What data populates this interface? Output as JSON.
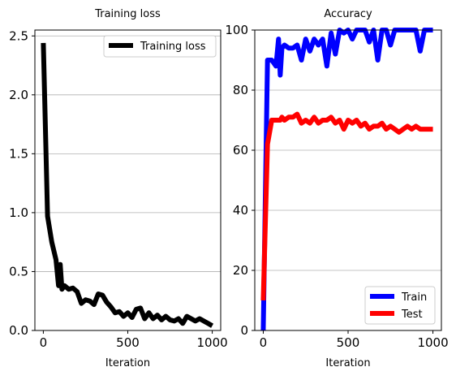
{
  "chart_data": [
    {
      "type": "line",
      "title": "Training loss",
      "xlabel": "Iteration",
      "ylabel": "",
      "xlim": [
        -50,
        1050
      ],
      "ylim": [
        0,
        2.55
      ],
      "xticks": [
        0,
        500,
        1000
      ],
      "xtick_labels": [
        "0",
        "500",
        "1000"
      ],
      "yticks": [
        0,
        0.5,
        1,
        1.5,
        2,
        2.5
      ],
      "ytick_labels": [
        "0.0",
        "0.5",
        "1.0",
        "1.5",
        "2.0",
        "2.5"
      ],
      "grid": "horizontal",
      "legend": "top-right",
      "series": [
        {
          "name": "Training loss",
          "color": "#000000",
          "x": [
            0,
            25,
            50,
            75,
            90,
            100,
            110,
            125,
            150,
            175,
            200,
            225,
            250,
            275,
            300,
            325,
            350,
            375,
            400,
            425,
            450,
            475,
            500,
            525,
            550,
            575,
            600,
            625,
            650,
            675,
            700,
            725,
            750,
            775,
            800,
            825,
            850,
            875,
            900,
            925,
            950,
            975,
            1000
          ],
          "y": [
            2.44,
            0.97,
            0.75,
            0.6,
            0.38,
            0.56,
            0.35,
            0.38,
            0.35,
            0.36,
            0.33,
            0.23,
            0.26,
            0.25,
            0.22,
            0.31,
            0.3,
            0.24,
            0.2,
            0.15,
            0.16,
            0.12,
            0.15,
            0.11,
            0.18,
            0.19,
            0.1,
            0.15,
            0.1,
            0.13,
            0.09,
            0.12,
            0.09,
            0.08,
            0.1,
            0.06,
            0.12,
            0.1,
            0.08,
            0.1,
            0.08,
            0.06,
            0.04
          ]
        }
      ]
    },
    {
      "type": "line",
      "title": "Accuracy",
      "xlabel": "Iteration",
      "ylabel": "",
      "xlim": [
        -50,
        1050
      ],
      "ylim": [
        0,
        100
      ],
      "xticks": [
        0,
        500,
        1000
      ],
      "xtick_labels": [
        "0",
        "500",
        "1000"
      ],
      "yticks": [
        0,
        20,
        40,
        60,
        80,
        100
      ],
      "ytick_labels": [
        "0",
        "20",
        "40",
        "60",
        "80",
        "100"
      ],
      "grid": "horizontal",
      "legend": "bottom-right",
      "series": [
        {
          "name": "Train",
          "color": "#0000ff",
          "x": [
            0,
            25,
            50,
            75,
            90,
            100,
            110,
            125,
            150,
            175,
            200,
            225,
            250,
            275,
            300,
            325,
            350,
            375,
            400,
            425,
            450,
            475,
            500,
            525,
            550,
            575,
            600,
            625,
            650,
            675,
            700,
            725,
            750,
            775,
            800,
            825,
            850,
            875,
            900,
            925,
            950,
            975,
            1000
          ],
          "y": [
            0,
            90,
            90,
            88,
            97,
            85,
            94,
            95,
            94,
            94,
            95,
            90,
            97,
            93,
            97,
            95,
            97,
            88,
            99,
            92,
            100,
            99,
            100,
            97,
            100,
            100,
            100,
            96,
            100,
            90,
            100,
            100,
            95,
            100,
            100,
            100,
            100,
            100,
            100,
            93,
            100,
            100,
            100
          ]
        },
        {
          "name": "Test",
          "color": "#ff0000",
          "x": [
            0,
            25,
            50,
            75,
            90,
            100,
            110,
            125,
            150,
            175,
            200,
            225,
            250,
            275,
            300,
            325,
            350,
            375,
            400,
            425,
            450,
            475,
            500,
            525,
            550,
            575,
            600,
            625,
            650,
            675,
            700,
            725,
            750,
            775,
            800,
            825,
            850,
            875,
            900,
            925,
            950,
            975,
            1000
          ],
          "y": [
            10,
            62,
            70,
            70,
            70,
            70,
            71,
            70,
            71,
            71,
            72,
            69,
            70,
            69,
            71,
            69,
            70,
            70,
            71,
            69,
            70,
            67,
            70,
            69,
            70,
            68,
            69,
            67,
            68,
            68,
            69,
            67,
            68,
            67,
            66,
            67,
            68,
            67,
            68,
            67,
            67,
            67,
            67
          ]
        }
      ]
    }
  ]
}
